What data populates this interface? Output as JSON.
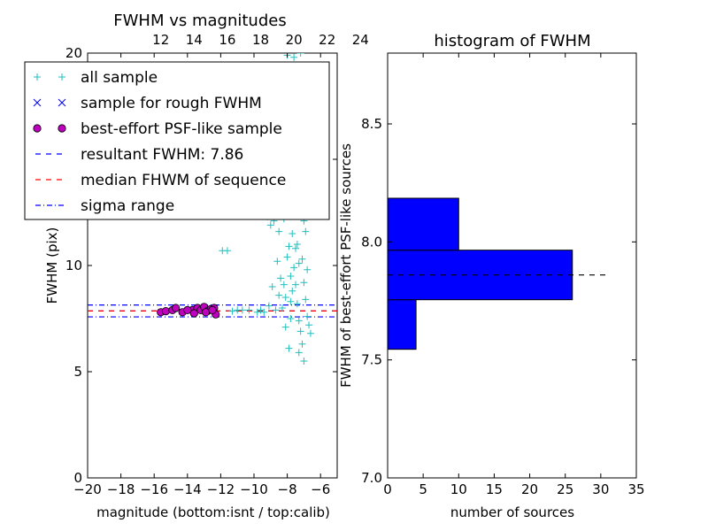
{
  "chart_data": [
    {
      "type": "scatter",
      "title": "FWHM vs magnitudes",
      "xlabel": "magnitude (bottom:isnt / top:calib)",
      "ylabel": "FWHM (pix)",
      "xlim": [
        -20,
        -5
      ],
      "ylim": [
        0,
        20
      ],
      "x_ticks": [
        -20,
        -18,
        -16,
        -14,
        -12,
        -10,
        -8,
        -6
      ],
      "x_tick_labels": [
        "−20",
        "−18",
        "−16",
        "−14",
        "−12",
        "−10",
        "−8",
        "−6"
      ],
      "y_ticks": [
        0,
        5,
        10,
        15,
        20
      ],
      "y_tick_labels": [
        "0",
        "5",
        "10",
        "15",
        "20"
      ],
      "top_axis": {
        "offset": 27.6,
        "ticks": [
          12,
          14,
          16,
          18,
          20,
          22,
          24
        ],
        "tick_labels": [
          "12",
          "14",
          "16",
          "18",
          "20",
          "22",
          "24"
        ]
      },
      "legend": {
        "placement": "upper-left",
        "entries": [
          {
            "label": "all sample",
            "marker": "plus",
            "color": "#1fbfbf"
          },
          {
            "label": "sample for rough FWHM",
            "marker": "x",
            "color": "#0000ff"
          },
          {
            "label": "best-effort PSF-like sample",
            "marker": "circle",
            "color": "#bf00bf"
          },
          {
            "label": "resultant FWHM: 7.86",
            "line": "dashed",
            "color": "#0000ff"
          },
          {
            "label": "median FHWM of sequence",
            "line": "dashed",
            "color": "#ff0000"
          },
          {
            "label": "sigma range",
            "line": "dashdot",
            "color": "#0000ff"
          }
        ]
      },
      "hlines": [
        {
          "y": 7.86,
          "style": "dashed",
          "color": "#0000ff"
        },
        {
          "y": 7.86,
          "style": "dashed",
          "color": "#ff0000"
        },
        {
          "y": 8.14,
          "style": "dashdot",
          "color": "#0000ff"
        },
        {
          "y": 7.58,
          "style": "dashdot",
          "color": "#0000ff"
        }
      ],
      "series": [
        {
          "name": "all sample",
          "color": "#1fbfbf",
          "marker": "plus",
          "points": [
            [
              -11.9,
              10.7
            ],
            [
              -11.6,
              10.7
            ],
            [
              -10.7,
              7.9
            ],
            [
              -10.3,
              7.9
            ],
            [
              -11.3,
              7.85
            ],
            [
              -11.0,
              7.9
            ],
            [
              -9.8,
              7.8
            ],
            [
              -9.5,
              12.5
            ],
            [
              -9.2,
              12.3
            ],
            [
              -9.0,
              11.9
            ],
            [
              -8.8,
              12.1
            ],
            [
              -8.5,
              11.6
            ],
            [
              -8.2,
              12.2
            ],
            [
              -8.0,
              13.2
            ],
            [
              -9.6,
              7.9
            ],
            [
              -9.4,
              7.8
            ],
            [
              -9.1,
              8.1
            ],
            [
              -8.9,
              9.0
            ],
            [
              -8.6,
              10.2
            ],
            [
              -8.4,
              9.4
            ],
            [
              -8.1,
              8.5
            ],
            [
              -7.9,
              10.9
            ],
            [
              -7.8,
              9.5
            ],
            [
              -7.7,
              11.5
            ],
            [
              -7.6,
              12.8
            ],
            [
              -7.5,
              13.6
            ],
            [
              -7.4,
              11.0
            ],
            [
              -7.3,
              14.2
            ],
            [
              -7.2,
              12.4
            ],
            [
              -7.1,
              10.3
            ],
            [
              -7.0,
              9.2
            ],
            [
              -6.9,
              8.4
            ],
            [
              -6.8,
              7.6
            ],
            [
              -6.7,
              7.2
            ],
            [
              -6.6,
              6.8
            ],
            [
              -7.7,
              8.8
            ],
            [
              -7.6,
              9.9
            ],
            [
              -7.5,
              10.8
            ],
            [
              -7.4,
              8.2
            ],
            [
              -7.3,
              7.4
            ],
            [
              -7.2,
              6.9
            ],
            [
              -7.1,
              6.3
            ],
            [
              -7.0,
              5.5
            ],
            [
              -7.3,
              5.9
            ],
            [
              -7.9,
              6.1
            ],
            [
              -8.1,
              7.1
            ],
            [
              -7.8,
              7.5
            ],
            [
              -8.3,
              8.0
            ],
            [
              -8.7,
              7.9
            ],
            [
              -7.2,
              20.0
            ],
            [
              -7.6,
              19.8
            ],
            [
              -8.0,
              19.9
            ],
            [
              -7.4,
              15.2
            ],
            [
              -7.1,
              13.0
            ],
            [
              -6.9,
              11.6
            ],
            [
              -6.8,
              9.8
            ],
            [
              -7.0,
              12.1
            ],
            [
              -7.3,
              10.1
            ],
            [
              -7.5,
              9.1
            ],
            [
              -7.8,
              8.3
            ],
            [
              -8.2,
              9.1
            ],
            [
              -8.5,
              8.6
            ],
            [
              -8.0,
              10.4
            ]
          ]
        },
        {
          "name": "best-effort PSF-like sample",
          "color": "#bf00bf",
          "marker": "circle",
          "points": [
            [
              -15.6,
              7.8
            ],
            [
              -15.3,
              7.85
            ],
            [
              -14.9,
              7.9
            ],
            [
              -14.7,
              8.0
            ],
            [
              -14.3,
              7.8
            ],
            [
              -13.7,
              7.9
            ],
            [
              -13.4,
              8.0
            ],
            [
              -13.2,
              7.9
            ],
            [
              -13.0,
              8.05
            ],
            [
              -12.8,
              7.85
            ],
            [
              -12.6,
              7.95
            ],
            [
              -12.4,
              8.0
            ],
            [
              -12.3,
              7.7
            ],
            [
              -12.9,
              7.8
            ],
            [
              -13.6,
              7.75
            ],
            [
              -14.0,
              7.9
            ],
            [
              -12.5,
              7.9
            ]
          ]
        }
      ]
    },
    {
      "type": "bar",
      "orientation": "horizontal",
      "title": "histogram of FWHM",
      "xlabel": "number of sources",
      "ylabel": "FWHM of best-effort PSF-like sources",
      "xlim": [
        0,
        35
      ],
      "ylim": [
        7.0,
        8.8
      ],
      "x_ticks": [
        0,
        5,
        10,
        15,
        20,
        25,
        30,
        35
      ],
      "x_tick_labels": [
        "0",
        "5",
        "10",
        "15",
        "20",
        "25",
        "30",
        "35"
      ],
      "y_ticks": [
        7.0,
        7.5,
        8.0,
        8.5
      ],
      "y_tick_labels": [
        "7.0",
        "7.5",
        "8.0",
        "8.5"
      ],
      "color": "#0000ff",
      "bins": [
        {
          "from": 7.545,
          "to": 7.755,
          "count": 4
        },
        {
          "from": 7.755,
          "to": 7.965,
          "count": 26
        },
        {
          "from": 7.965,
          "to": 8.185,
          "count": 10
        }
      ],
      "hline": {
        "y": 7.86,
        "from": 0,
        "to": 31.3,
        "style": "dashed",
        "color": "#000000"
      }
    }
  ]
}
